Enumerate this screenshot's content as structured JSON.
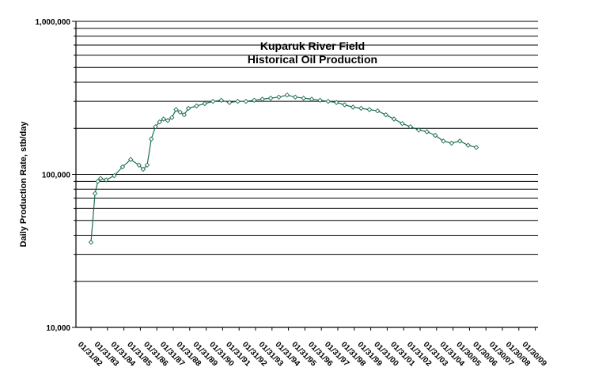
{
  "chart_data": {
    "type": "line",
    "title_lines": [
      "Kuparuk River Field",
      "Historical Oil Production"
    ],
    "ylabel": "Daily Production Rate, stb/day",
    "xlabel": "",
    "y_scale": "log",
    "ylim": [
      10000,
      1000000
    ],
    "y_tick_labels": [
      "10,000",
      "100,000",
      "1,000,000"
    ],
    "x_tick_labels": [
      "01/31/82",
      "01/31/83",
      "01/31/84",
      "01/31/85",
      "01/31/86",
      "01/31/87",
      "01/31/88",
      "01/31/89",
      "01/31/90",
      "01/31/91",
      "01/31/92",
      "01/31/93",
      "01/31/94",
      "01/31/95",
      "01/31/96",
      "01/31/97",
      "01/31/98",
      "01/31/99",
      "01/31/00",
      "01/31/01",
      "01/31/02",
      "01/31/03",
      "01/31/04",
      "01/30/05",
      "01/30/06",
      "01/30/07",
      "01/30/08",
      "01/30/09"
    ],
    "grid": "horizontal",
    "legend": "none",
    "line_color": "#1b6e4a",
    "series": [
      {
        "x": [
          "01/31/82",
          "04/30/82",
          "06/30/82",
          "08/31/82",
          "12/31/82",
          "06/30/83",
          "12/31/83",
          "06/30/84",
          "12/31/84",
          "03/31/85",
          "06/30/85",
          "09/30/85",
          "12/31/85",
          "03/31/86",
          "06/30/86",
          "09/30/86",
          "12/31/86",
          "03/31/87",
          "06/30/87",
          "09/30/87",
          "12/31/87",
          "06/30/88",
          "12/31/88",
          "06/30/89",
          "12/31/89",
          "06/30/90",
          "12/31/90",
          "06/30/91",
          "12/31/91",
          "06/30/92",
          "12/31/92",
          "06/30/93",
          "12/31/93",
          "06/30/94",
          "12/31/94",
          "06/30/95",
          "12/31/95",
          "06/30/96",
          "12/31/96",
          "06/30/97",
          "12/31/97",
          "06/30/98",
          "12/31/98",
          "06/30/99",
          "12/31/99",
          "06/30/00",
          "12/31/00",
          "06/30/01",
          "12/31/01",
          "06/30/02",
          "12/31/02",
          "06/30/03",
          "12/31/03",
          "06/30/04",
          "12/31/04",
          "06/30/05"
        ],
        "values": [
          36000,
          75000,
          90000,
          94000,
          92000,
          98000,
          112000,
          125000,
          115000,
          108000,
          115000,
          170000,
          205000,
          220000,
          230000,
          225000,
          235000,
          265000,
          255000,
          245000,
          270000,
          280000,
          290000,
          300000,
          305000,
          295000,
          300000,
          300000,
          305000,
          310000,
          315000,
          320000,
          330000,
          320000,
          315000,
          310000,
          305000,
          300000,
          295000,
          285000,
          275000,
          270000,
          265000,
          260000,
          245000,
          230000,
          215000,
          205000,
          195000,
          190000,
          180000,
          165000,
          160000,
          165000,
          155000,
          150000
        ]
      }
    ]
  }
}
